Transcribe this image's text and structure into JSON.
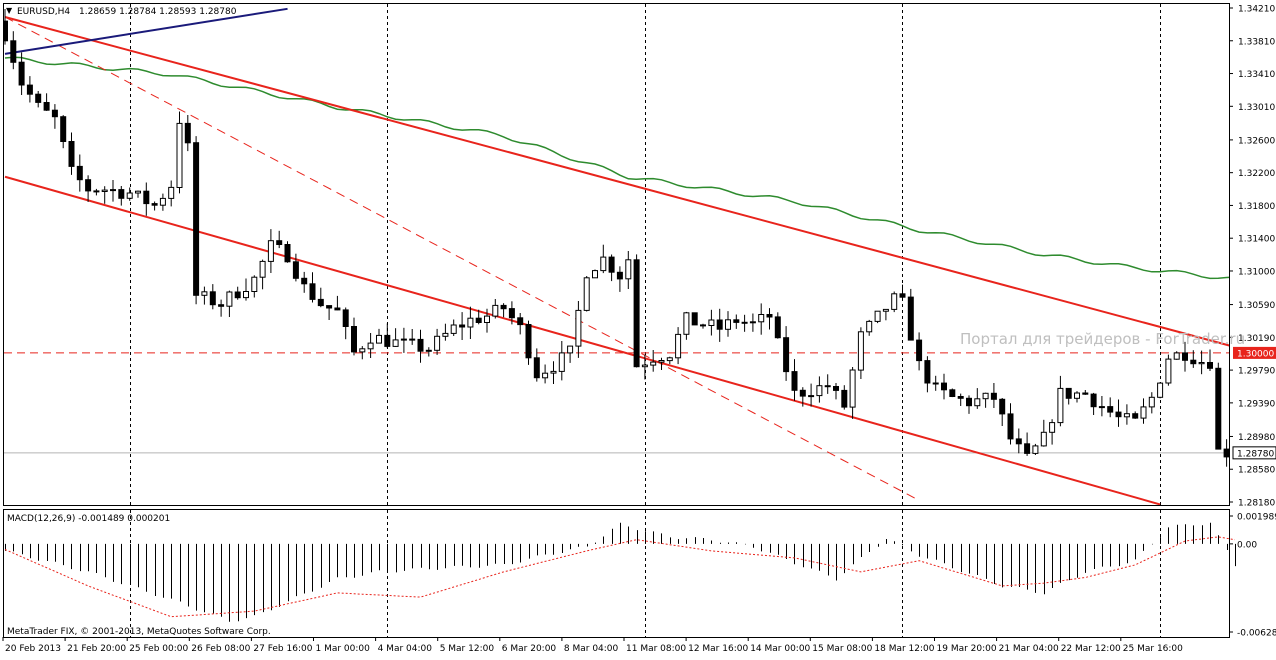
{
  "header": {
    "symbol": "EURUSD,H4",
    "ohlc": "1.28659 1.28784 1.28593 1.28780"
  },
  "watermark": "Портал для трейдеров - ForTrader.ru",
  "copyright": "MetaTrader FIX, © 2001-2013, MetaQuotes Software Corp.",
  "macd_label": "MACD(12,26,9) -0.001489 0.000201",
  "colors": {
    "candle": "#000000",
    "ma": "#2e8b2e",
    "trend": "#e8241c",
    "blue_line": "#1a1a7a",
    "level": "#e8241c",
    "macd_signal": "#e8241c"
  },
  "chart_data": {
    "type": "candlestick",
    "instrument": "EURUSD",
    "timeframe": "H4",
    "ylim": [
      1.2808,
      1.3421
    ],
    "price_ticks": [
      "1.34210",
      "1.33810",
      "1.33410",
      "1.33010",
      "1.32600",
      "1.32200",
      "1.31800",
      "1.31400",
      "1.31000",
      "1.30590",
      "1.30190",
      "1.29790",
      "1.29390",
      "1.28980",
      "1.28580",
      "1.28180"
    ],
    "current_price_label": "1.28780",
    "current_price": 1.2878,
    "level_label": "1.30000",
    "level": 1.3,
    "x_labels": [
      "20 Feb 2013",
      "21 Feb 20:00",
      "25 Feb 00:00",
      "26 Feb 08:00",
      "27 Feb 16:00",
      "1 Mar 00:00",
      "4 Mar 04:00",
      "5 Mar 12:00",
      "6 Mar 20:00",
      "8 Mar 04:00",
      "11 Mar 08:00",
      "12 Mar 16:00",
      "14 Mar 00:00",
      "15 Mar 08:00",
      "18 Mar 12:00",
      "19 Mar 20:00",
      "21 Mar 04:00",
      "22 Mar 12:00",
      "25 Mar 16:00"
    ],
    "num_bars": 149,
    "anchor_closes": [
      [
        0,
        1.339
      ],
      [
        2,
        1.333
      ],
      [
        4,
        1.33
      ],
      [
        6,
        1.3285
      ],
      [
        8,
        1.322
      ],
      [
        10,
        1.32
      ],
      [
        12,
        1.32
      ],
      [
        15,
        1.3195
      ],
      [
        18,
        1.318
      ],
      [
        20,
        1.3205
      ],
      [
        21,
        1.3285
      ],
      [
        22,
        1.325
      ],
      [
        23,
        1.307
      ],
      [
        26,
        1.306
      ],
      [
        28,
        1.3075
      ],
      [
        30,
        1.309
      ],
      [
        32,
        1.313
      ],
      [
        34,
        1.312
      ],
      [
        36,
        1.308
      ],
      [
        38,
        1.306
      ],
      [
        40,
        1.305
      ],
      [
        42,
        1.3
      ],
      [
        44,
        1.302
      ],
      [
        48,
        1.301
      ],
      [
        51,
        1.3005
      ],
      [
        54,
        1.303
      ],
      [
        56,
        1.304
      ],
      [
        58,
        1.3045
      ],
      [
        60,
        1.3055
      ],
      [
        62,
        1.303
      ],
      [
        64,
        1.2975
      ],
      [
        66,
        1.2985
      ],
      [
        68,
        1.3
      ],
      [
        70,
        1.31
      ],
      [
        72,
        1.3115
      ],
      [
        74,
        1.3095
      ],
      [
        75,
        1.3115
      ],
      [
        76,
        1.2985
      ],
      [
        78,
        1.2995
      ],
      [
        80,
        1.3
      ],
      [
        82,
        1.304
      ],
      [
        84,
        1.3035
      ],
      [
        86,
        1.303
      ],
      [
        88,
        1.304
      ],
      [
        90,
        1.3035
      ],
      [
        92,
        1.3045
      ],
      [
        93,
        1.301
      ],
      [
        95,
        1.295
      ],
      [
        97,
        1.2955
      ],
      [
        99,
        1.296
      ],
      [
        101,
        1.2935
      ],
      [
        103,
        1.302
      ],
      [
        106,
        1.3055
      ],
      [
        107,
        1.3065
      ],
      [
        108,
        1.306
      ],
      [
        110,
        1.2985
      ],
      [
        112,
        1.2955
      ],
      [
        114,
        1.2945
      ],
      [
        116,
        1.294
      ],
      [
        119,
        1.2945
      ],
      [
        121,
        1.2895
      ],
      [
        123,
        1.287
      ],
      [
        125,
        1.2895
      ],
      [
        127,
        1.295
      ],
      [
        130,
        1.295
      ],
      [
        132,
        1.2935
      ],
      [
        134,
        1.292
      ],
      [
        136,
        1.2915
      ],
      [
        138,
        1.2945
      ],
      [
        140,
        1.2995
      ],
      [
        142,
        1.3
      ],
      [
        144,
        1.299
      ],
      [
        145,
        1.299
      ],
      [
        146,
        1.288
      ],
      [
        148,
        1.2878
      ]
    ],
    "moving_average": [
      [
        0,
        1.336
      ],
      [
        20,
        1.334
      ],
      [
        40,
        1.33
      ],
      [
        60,
        1.3265
      ],
      [
        75,
        1.3215
      ],
      [
        95,
        1.3185
      ],
      [
        110,
        1.315
      ],
      [
        125,
        1.312
      ],
      [
        135,
        1.3105
      ],
      [
        148,
        1.309
      ]
    ],
    "trendlines": [
      {
        "style": "solid",
        "from": [
          0,
          1.341
        ],
        "to": [
          158,
          1.298
        ]
      },
      {
        "style": "solid",
        "from": [
          0,
          1.3215
        ],
        "to": [
          139,
          1.2815
        ]
      },
      {
        "style": "dashed",
        "from": [
          0,
          1.341
        ],
        "to": [
          110,
          1.282
        ]
      }
    ],
    "blue_line": {
      "from": [
        0,
        1.3365
      ],
      "to": [
        34,
        1.342
      ]
    },
    "vertical_separators": [
      15,
      46,
      77,
      108,
      139
    ],
    "macd": {
      "label": "MACD(12,26,9)",
      "main": -0.001489,
      "signal": 0.000201,
      "ticks": [
        "0.001989",
        "0.00",
        "-0.006289"
      ],
      "ylim": [
        -0.006289,
        0.001989
      ],
      "main_anchors": [
        [
          0,
          -0.0005
        ],
        [
          10,
          -0.002
        ],
        [
          20,
          -0.004
        ],
        [
          27,
          -0.0055
        ],
        [
          30,
          -0.0052
        ],
        [
          40,
          -0.0025
        ],
        [
          45,
          -0.002
        ],
        [
          50,
          -0.0018
        ],
        [
          60,
          -0.0015
        ],
        [
          65,
          -0.0008
        ],
        [
          70,
          -0.0002
        ],
        [
          74,
          0.0014
        ],
        [
          80,
          0.0005
        ],
        [
          85,
          0.0003
        ],
        [
          90,
          -0.0002
        ],
        [
          100,
          -0.0025
        ],
        [
          106,
          0.0004
        ],
        [
          110,
          -0.0008
        ],
        [
          120,
          -0.003
        ],
        [
          125,
          -0.0035
        ],
        [
          130,
          -0.002
        ],
        [
          136,
          -0.0012
        ],
        [
          140,
          0.0012
        ],
        [
          145,
          0.0015
        ],
        [
          148,
          -0.0015
        ]
      ],
      "signal_anchors": [
        [
          0,
          -0.0004
        ],
        [
          10,
          -0.003
        ],
        [
          20,
          -0.0052
        ],
        [
          30,
          -0.0048
        ],
        [
          40,
          -0.0035
        ],
        [
          50,
          -0.0038
        ],
        [
          60,
          -0.002
        ],
        [
          70,
          -0.0005
        ],
        [
          76,
          0.0003
        ],
        [
          85,
          -0.0005
        ],
        [
          95,
          -0.001
        ],
        [
          103,
          -0.002
        ],
        [
          110,
          -0.0012
        ],
        [
          120,
          -0.003
        ],
        [
          125,
          -0.0028
        ],
        [
          130,
          -0.0024
        ],
        [
          136,
          -0.0015
        ],
        [
          142,
          0.0002
        ],
        [
          146,
          0.0005
        ],
        [
          148,
          0.0003
        ]
      ]
    }
  }
}
